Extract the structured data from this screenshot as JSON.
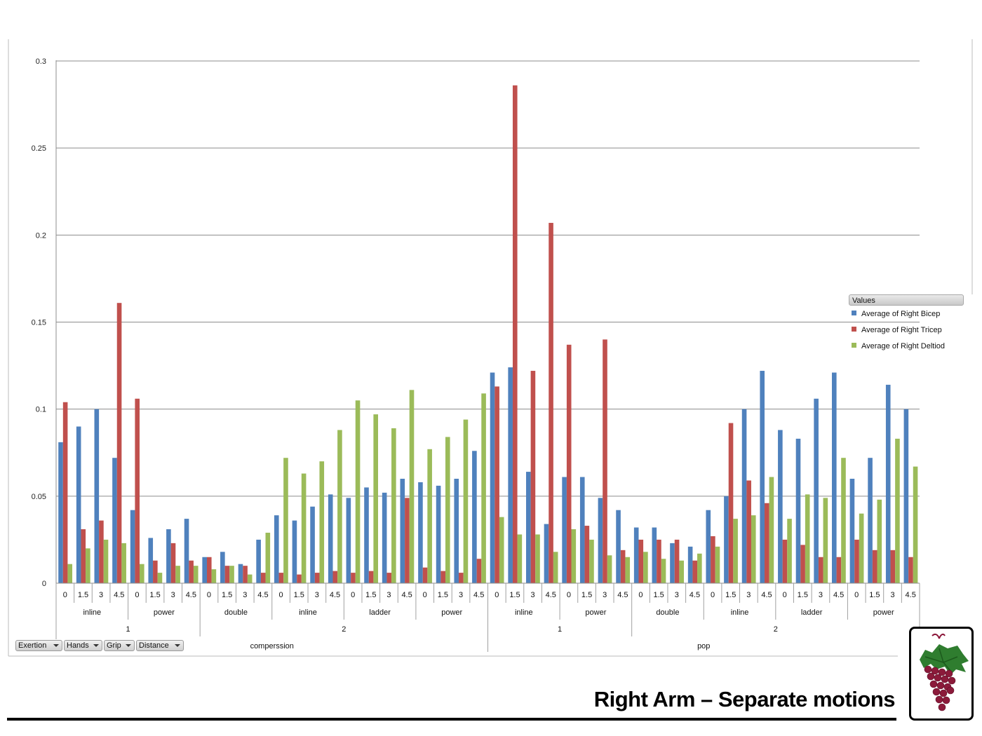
{
  "slide_title": "Right Arm – Separate motions",
  "legend": {
    "header": "Values",
    "items": [
      {
        "label": "Average of Right Bicep",
        "color": "#4f81bd"
      },
      {
        "label": "Average of Right Tricep",
        "color": "#c0504d"
      },
      {
        "label": "Average of Right Deltiod",
        "color": "#9bbb59"
      }
    ]
  },
  "field_buttons": [
    {
      "label": "Exertion",
      "icon": "dropdown-arrow-icon"
    },
    {
      "label": "Hands",
      "icon": "dropdown-arrow-icon"
    },
    {
      "label": "Grip",
      "icon": "dropdown-arrow-icon"
    },
    {
      "label": "Distance",
      "icon": "dropdown-arrow-icon"
    }
  ],
  "logo": {
    "icon": "grape-cluster-icon"
  },
  "chart_data": {
    "type": "bar",
    "y_ticks": [
      "0",
      "0.05",
      "0.1",
      "0.15",
      "0.2",
      "0.25",
      "0.3"
    ],
    "ylim": [
      0,
      0.3
    ],
    "grid": true,
    "legend_position": "right",
    "category_levels": {
      "distance": [
        "0",
        "1.5",
        "3",
        "4.5",
        "0",
        "1.5",
        "3",
        "4.5",
        "0",
        "1.5",
        "3",
        "4.5",
        "0",
        "1.5",
        "3",
        "4.5",
        "0",
        "1.5",
        "3",
        "4.5",
        "0",
        "1.5",
        "3",
        "4.5",
        "0",
        "1.5",
        "3",
        "4.5",
        "0",
        "1.5",
        "3",
        "4.5",
        "0",
        "1.5",
        "3",
        "4.5",
        "0",
        "1.5",
        "3",
        "4.5",
        "0",
        "1.5",
        "3",
        "4.5",
        "0",
        "1.5",
        "3",
        "4.5"
      ],
      "grip": [
        "inline",
        "power",
        "double",
        "inline",
        "ladder",
        "power",
        "inline",
        "power",
        "double",
        "inline",
        "ladder",
        "power"
      ],
      "hands": [
        "1",
        "2",
        "1",
        "2"
      ],
      "exertion": [
        "comperssion",
        "pop"
      ]
    },
    "series": [
      {
        "name": "Average of Right Bicep",
        "color": "#4f81bd",
        "values": [
          0.081,
          0.09,
          0.1,
          0.072,
          0.042,
          0.026,
          0.031,
          0.037,
          0.015,
          0.018,
          0.011,
          0.025,
          0.039,
          0.036,
          0.044,
          0.051,
          0.049,
          0.055,
          0.052,
          0.06,
          0.058,
          0.056,
          0.06,
          0.076,
          0.121,
          0.124,
          0.064,
          0.034,
          0.061,
          0.061,
          0.049,
          0.042,
          0.032,
          0.032,
          0.023,
          0.021,
          0.042,
          0.05,
          0.1,
          0.122,
          0.088,
          0.083,
          0.106,
          0.121,
          0.06,
          0.072,
          0.114,
          0.1
        ]
      },
      {
        "name": "Average of Right Tricep",
        "color": "#c0504d",
        "values": [
          0.104,
          0.031,
          0.036,
          0.161,
          0.106,
          0.013,
          0.023,
          0.013,
          0.015,
          0.01,
          0.01,
          0.006,
          0.006,
          0.005,
          0.006,
          0.007,
          0.006,
          0.007,
          0.006,
          0.049,
          0.009,
          0.007,
          0.006,
          0.014,
          0.113,
          0.286,
          0.122,
          0.207,
          0.137,
          0.033,
          0.14,
          0.019,
          0.025,
          0.025,
          0.025,
          0.013,
          0.027,
          0.092,
          0.059,
          0.046,
          0.025,
          0.022,
          0.015,
          0.015,
          0.025,
          0.019,
          0.019,
          0.015
        ]
      },
      {
        "name": "Average of Right Deltiod",
        "color": "#9bbb59",
        "values": [
          0.011,
          0.02,
          0.025,
          0.023,
          0.011,
          0.006,
          0.01,
          0.01,
          0.008,
          0.01,
          0.005,
          0.029,
          0.072,
          0.063,
          0.07,
          0.088,
          0.105,
          0.097,
          0.089,
          0.111,
          0.077,
          0.084,
          0.094,
          0.109,
          0.038,
          0.028,
          0.028,
          0.018,
          0.031,
          0.025,
          0.016,
          0.015,
          0.018,
          0.014,
          0.013,
          0.017,
          0.021,
          0.037,
          0.039,
          0.061,
          0.037,
          0.051,
          0.049,
          0.072,
          0.04,
          0.048,
          0.083,
          0.067
        ]
      }
    ]
  }
}
